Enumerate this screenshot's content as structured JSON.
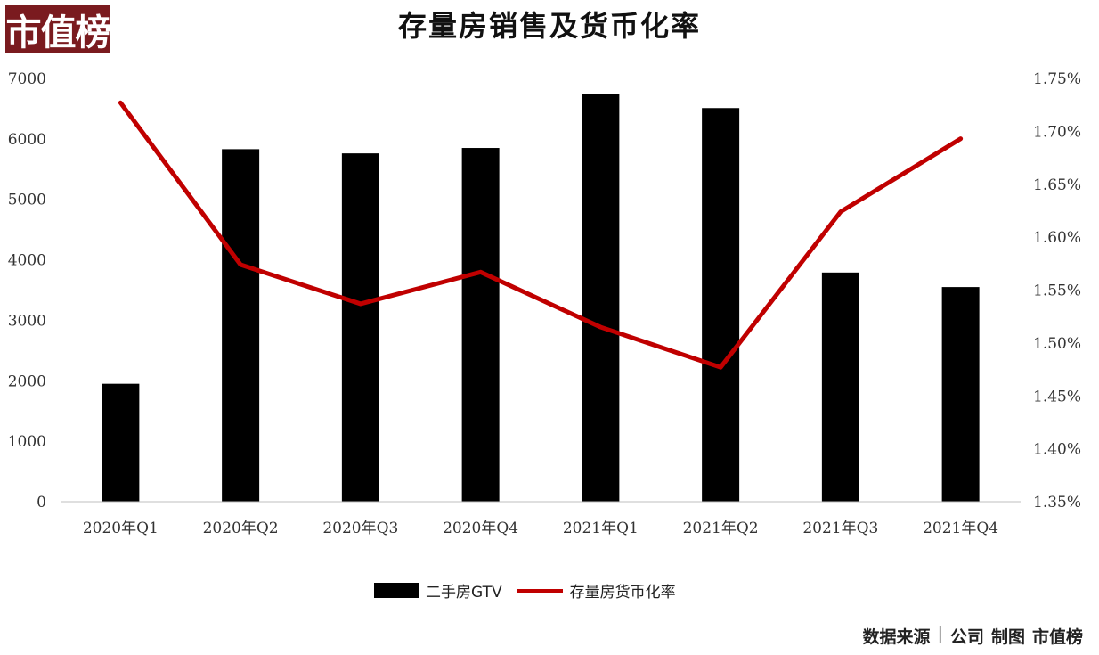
{
  "logo": {
    "text": "市值榜"
  },
  "footer": {
    "source": "数据来源",
    "company": "公司",
    "made_by": "制图",
    "brand": "市值榜"
  },
  "chart_data": {
    "type": "bar+line",
    "title": "存量房销售及货币化率",
    "categories": [
      "2020年Q1",
      "2020年Q2",
      "2020年Q3",
      "2020年Q4",
      "2021年Q1",
      "2021年Q2",
      "2021年Q3",
      "2021年Q4"
    ],
    "series": [
      {
        "name": "二手房GTV",
        "type": "bar",
        "axis": "left",
        "color": "#000000",
        "values": [
          1950,
          5830,
          5760,
          5850,
          6740,
          6510,
          3790,
          3550
        ]
      },
      {
        "name": "存量房货币化率",
        "type": "line",
        "axis": "right",
        "color": "#c00000",
        "values": [
          1.727,
          1.574,
          1.537,
          1.567,
          1.515,
          1.477,
          1.624,
          1.693
        ]
      }
    ],
    "y_left": {
      "min": 0,
      "max": 7000,
      "ticks": [
        "0",
        "1000",
        "2000",
        "3000",
        "4000",
        "5000",
        "6000",
        "7000"
      ]
    },
    "y_right": {
      "min": 1.35,
      "max": 1.75,
      "ticks": [
        "1.35%",
        "1.40%",
        "1.45%",
        "1.50%",
        "1.55%",
        "1.60%",
        "1.65%",
        "1.70%",
        "1.75%"
      ]
    },
    "grid": false,
    "legend": "bottom"
  }
}
